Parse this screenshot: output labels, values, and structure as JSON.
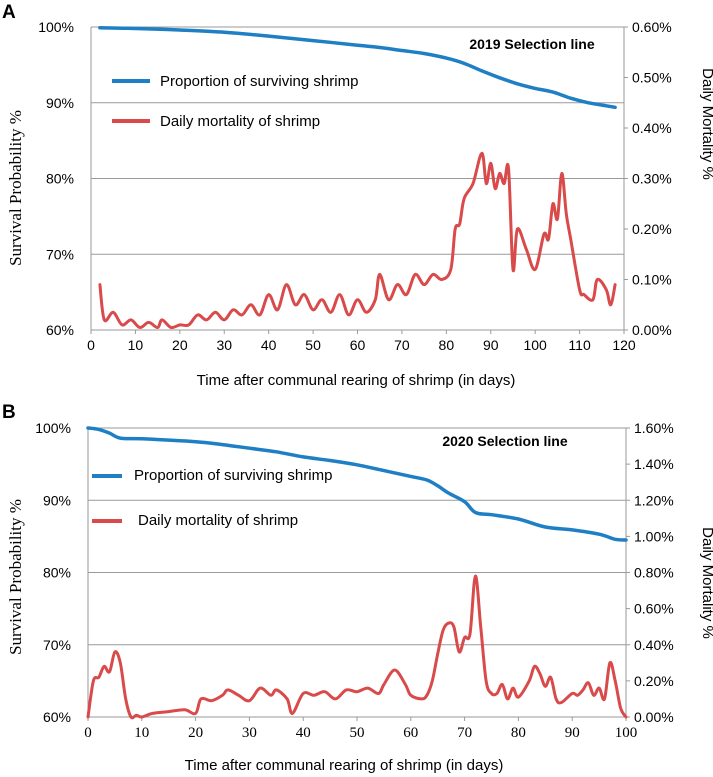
{
  "chart_data": [
    {
      "panel": "A",
      "type": "line",
      "title": "2019 Selection line",
      "xlabel": "Time after communal rearing of shrimp (in days)",
      "ylabel_left": "Survival Probability %",
      "ylabel_right": "Daily Mortality %",
      "xlim": [
        0,
        120
      ],
      "ylim_left": [
        60,
        100
      ],
      "ylim_right": [
        0,
        0.6
      ],
      "x_ticks": [
        "0",
        "10",
        "20",
        "30",
        "40",
        "50",
        "60",
        "70",
        "80",
        "90",
        "100",
        "110",
        "120"
      ],
      "y_left_ticks": [
        "60%",
        "70%",
        "80%",
        "90%",
        "100%"
      ],
      "y_right_ticks": [
        "0.00%",
        "0.10%",
        "0.20%",
        "0.30%",
        "0.40%",
        "0.50%",
        "0.60%"
      ],
      "legend": [
        "Proportion of surviving shrimp",
        "Daily mortality of shrimp"
      ],
      "colors": {
        "survival": "#1f7fc4",
        "mortality": "#d94a4a"
      },
      "series": [
        {
          "name": "Proportion of surviving shrimp",
          "axis": "left",
          "x": [
            2,
            10,
            20,
            30,
            40,
            50,
            60,
            65,
            70,
            75,
            80,
            84,
            88,
            92,
            96,
            100,
            104,
            108,
            112,
            116,
            118
          ],
          "values": [
            99.9,
            99.8,
            99.6,
            99.3,
            98.8,
            98.2,
            97.6,
            97.3,
            96.9,
            96.5,
            95.9,
            95.2,
            94.2,
            93.3,
            92.5,
            91.9,
            91.4,
            90.6,
            90.0,
            89.6,
            89.4
          ]
        },
        {
          "name": "Daily mortality of shrimp",
          "axis": "right",
          "x": [
            2,
            3,
            5,
            7,
            9,
            11,
            13,
            15,
            16,
            18,
            20,
            22,
            24,
            26,
            28,
            30,
            32,
            34,
            36,
            38,
            40,
            42,
            44,
            46,
            48,
            50,
            52,
            54,
            56,
            58,
            60,
            62,
            64,
            65,
            67,
            69,
            71,
            73,
            75,
            77,
            79,
            81,
            82,
            83,
            84,
            86,
            88,
            89,
            90,
            91,
            92,
            93,
            94,
            95,
            96,
            98,
            100,
            102,
            103,
            104,
            105,
            106,
            107,
            108,
            110,
            111,
            113,
            114,
            116,
            117,
            118
          ],
          "values": [
            0.09,
            0.02,
            0.035,
            0.01,
            0.02,
            0.005,
            0.015,
            0.005,
            0.02,
            0.005,
            0.01,
            0.01,
            0.03,
            0.02,
            0.035,
            0.02,
            0.04,
            0.03,
            0.05,
            0.03,
            0.07,
            0.04,
            0.09,
            0.05,
            0.07,
            0.04,
            0.06,
            0.035,
            0.07,
            0.03,
            0.06,
            0.035,
            0.06,
            0.11,
            0.06,
            0.09,
            0.07,
            0.11,
            0.09,
            0.11,
            0.1,
            0.12,
            0.2,
            0.21,
            0.26,
            0.29,
            0.35,
            0.29,
            0.33,
            0.28,
            0.31,
            0.29,
            0.32,
            0.12,
            0.2,
            0.16,
            0.12,
            0.19,
            0.18,
            0.25,
            0.22,
            0.31,
            0.23,
            0.18,
            0.08,
            0.07,
            0.06,
            0.1,
            0.08,
            0.05,
            0.09
          ]
        }
      ]
    },
    {
      "panel": "B",
      "type": "line",
      "title": "2020 Selection line",
      "xlabel": "Time after communal rearing of shrimp (in days)",
      "ylabel_left": "Survival Probability %",
      "ylabel_right": "Daily Mortality %",
      "xlim": [
        0,
        100
      ],
      "ylim_left": [
        60,
        100
      ],
      "ylim_right": [
        0,
        1.6
      ],
      "x_ticks": [
        "0",
        "10",
        "20",
        "30",
        "40",
        "50",
        "60",
        "70",
        "80",
        "90",
        "100"
      ],
      "y_left_ticks": [
        "60%",
        "70%",
        "80%",
        "90%",
        "100%"
      ],
      "y_right_ticks": [
        "0.00%",
        "0.20%",
        "0.40%",
        "0.60%",
        "0.80%",
        "1.00%",
        "1.20%",
        "1.40%",
        "1.60%"
      ],
      "legend": [
        "Proportion of surviving shrimp",
        "Daily mortality of shrimp"
      ],
      "colors": {
        "survival": "#1f7fc4",
        "mortality": "#d94a4a"
      },
      "series": [
        {
          "name": "Proportion of surviving shrimp",
          "axis": "left",
          "x": [
            0,
            2,
            4,
            6,
            10,
            20,
            25,
            30,
            35,
            40,
            45,
            50,
            55,
            60,
            63,
            65,
            67,
            70,
            72,
            75,
            80,
            85,
            90,
            95,
            98,
            100
          ],
          "values": [
            100,
            99.8,
            99.3,
            98.6,
            98.5,
            98.1,
            97.7,
            97.2,
            96.7,
            96.0,
            95.5,
            94.9,
            94.1,
            93.3,
            92.8,
            92.0,
            91.0,
            89.8,
            88.3,
            88.0,
            87.4,
            86.3,
            85.9,
            85.3,
            84.6,
            84.5
          ]
        },
        {
          "name": "Daily mortality of shrimp",
          "axis": "right",
          "x": [
            0,
            1,
            2,
            3,
            4,
            5,
            6,
            7,
            8,
            9,
            10,
            12,
            15,
            18,
            20,
            21,
            23,
            25,
            26,
            28,
            30,
            32,
            34,
            35,
            37,
            38,
            40,
            42,
            44,
            46,
            48,
            50,
            52,
            54,
            55,
            57,
            59,
            60,
            62,
            63,
            64,
            65,
            66,
            67,
            68,
            69,
            70,
            71,
            72,
            73,
            74,
            75,
            76,
            77,
            78,
            79,
            80,
            82,
            83,
            84,
            85,
            86,
            87,
            88,
            90,
            91,
            92,
            93,
            94,
            95,
            96,
            97,
            98,
            99,
            100
          ],
          "values": [
            0,
            0.2,
            0.22,
            0.28,
            0.25,
            0.36,
            0.3,
            0.1,
            0,
            0.01,
            0,
            0.02,
            0.03,
            0.04,
            0.02,
            0.1,
            0.09,
            0.12,
            0.15,
            0.12,
            0.09,
            0.16,
            0.12,
            0.15,
            0.1,
            0.02,
            0.13,
            0.12,
            0.14,
            0.1,
            0.15,
            0.14,
            0.16,
            0.13,
            0.18,
            0.26,
            0.18,
            0.12,
            0.1,
            0.12,
            0.2,
            0.35,
            0.48,
            0.52,
            0.5,
            0.36,
            0.44,
            0.46,
            0.78,
            0.5,
            0.2,
            0.13,
            0.13,
            0.18,
            0.1,
            0.16,
            0.11,
            0.2,
            0.28,
            0.24,
            0.17,
            0.22,
            0.1,
            0.08,
            0.13,
            0.12,
            0.15,
            0.19,
            0.12,
            0.16,
            0.1,
            0.3,
            0.2,
            0.05,
            0
          ]
        }
      ]
    }
  ]
}
